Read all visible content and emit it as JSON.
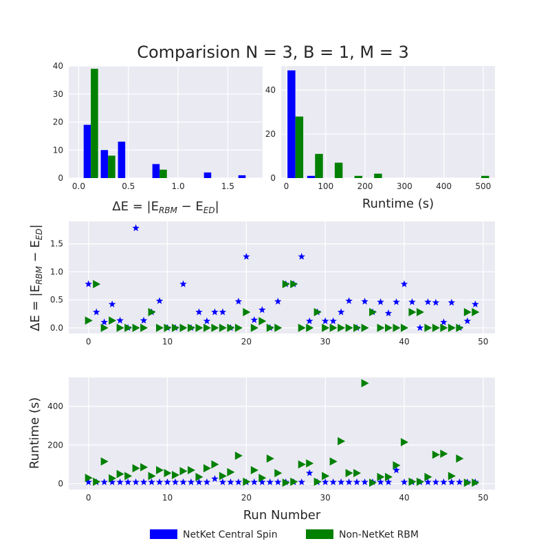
{
  "figure": {
    "title": "Comparision N = 3, B = 1, M = 3",
    "legend": [
      {
        "label": "NetKet Central Spin",
        "color": "#0000ff"
      },
      {
        "label": "Non-NetKet RBM",
        "color": "#008000"
      }
    ]
  },
  "chart_data": [
    {
      "type": "bar",
      "subtype": "histogram",
      "xlabel": "ΔE = |E_RBM − E_ED|",
      "ylabel": "",
      "xlim": [
        -0.1,
        1.85
      ],
      "ylim": [
        0,
        40
      ],
      "xticks": [
        0.0,
        0.5,
        1.0,
        1.5
      ],
      "xtick_labels": [
        "0.0",
        "0.5",
        "1.0",
        "1.5"
      ],
      "yticks": [
        0,
        10,
        20,
        30,
        40
      ],
      "grid": true,
      "series": [
        {
          "name": "NetKet Central Spin",
          "color": "#0000ff",
          "bins": [
            [
              0.05,
              0.122
            ],
            [
              0.222,
              0.295
            ],
            [
              0.395,
              0.468
            ],
            [
              0.568,
              0.641
            ],
            [
              0.741,
              0.814
            ],
            [
              0.914,
              0.987
            ],
            [
              1.087,
              1.16
            ],
            [
              1.26,
              1.333
            ],
            [
              1.433,
              1.506
            ],
            [
              1.606,
              1.679
            ]
          ],
          "values": [
            19,
            10,
            13,
            0,
            5,
            0,
            0,
            2,
            0,
            1
          ]
        },
        {
          "name": "Non-NetKet RBM",
          "color": "#008000",
          "bins": [
            [
              0.122,
              0.195
            ],
            [
              0.295,
              0.368
            ],
            [
              0.468,
              0.541
            ],
            [
              0.641,
              0.714
            ],
            [
              0.814,
              0.887
            ]
          ],
          "values": [
            39,
            8,
            0,
            0,
            3
          ]
        }
      ]
    },
    {
      "type": "bar",
      "subtype": "histogram",
      "xlabel": "Runtime (s)",
      "ylabel": "",
      "xlim": [
        -13,
        530
      ],
      "ylim": [
        0,
        51
      ],
      "xticks": [
        0,
        100,
        200,
        300,
        400,
        500
      ],
      "yticks": [
        0,
        20,
        40
      ],
      "grid": true,
      "series": [
        {
          "name": "NetKet Central Spin",
          "color": "#0000ff",
          "bins": [
            [
              3,
              23
            ],
            [
              53,
              73
            ]
          ],
          "values": [
            49,
            1
          ]
        },
        {
          "name": "Non-NetKet RBM",
          "color": "#008000",
          "bins": [
            [
              23,
              43
            ],
            [
              73,
              93
            ],
            [
              123,
              143
            ],
            [
              173,
              193
            ],
            [
              223,
              243
            ],
            [
              273,
              293
            ],
            [
              323,
              343
            ],
            [
              373,
              393
            ],
            [
              423,
              443
            ],
            [
              473,
              493
            ],
            [
              495,
              515
            ]
          ],
          "values": [
            28,
            11,
            7,
            1,
            2,
            0,
            0,
            0,
            0,
            0,
            1
          ]
        }
      ]
    },
    {
      "type": "scatter",
      "xlabel": "",
      "ylabel": "ΔE = |E_RBM − E_ED|",
      "xlim": [
        -2.5,
        51.5
      ],
      "ylim": [
        -0.1,
        1.9
      ],
      "xticks": [
        0,
        10,
        20,
        30,
        40,
        50
      ],
      "yticks": [
        0.0,
        0.5,
        1.0,
        1.5
      ],
      "ytick_labels": [
        "0.0",
        "0.5",
        "1.0",
        "1.5"
      ],
      "grid": true,
      "x": [
        0,
        1,
        2,
        3,
        4,
        5,
        6,
        7,
        8,
        9,
        10,
        11,
        12,
        13,
        14,
        15,
        16,
        17,
        18,
        19,
        20,
        21,
        22,
        23,
        24,
        25,
        26,
        27,
        28,
        29,
        30,
        31,
        32,
        33,
        34,
        35,
        36,
        37,
        38,
        39,
        40,
        41,
        42,
        43,
        44,
        45,
        46,
        47,
        48,
        49
      ],
      "series": [
        {
          "name": "NetKet Central Spin",
          "color": "#0000ff",
          "marker": "star",
          "values": [
            0.78,
            0.28,
            0.1,
            0.42,
            0.13,
            0.0,
            1.78,
            0.13,
            0.28,
            0.48,
            0.0,
            0.0,
            0.78,
            0.0,
            0.28,
            0.12,
            0.28,
            0.28,
            0.0,
            0.47,
            1.27,
            0.14,
            0.32,
            0.0,
            0.47,
            0.78,
            0.78,
            1.27,
            0.12,
            0.28,
            0.12,
            0.12,
            0.28,
            0.48,
            0.0,
            0.47,
            0.28,
            0.46,
            0.26,
            0.46,
            0.78,
            0.46,
            0.0,
            0.46,
            0.45,
            0.1,
            0.45,
            0.0,
            0.12,
            0.42
          ]
        },
        {
          "name": "Non-NetKet RBM",
          "color": "#008000",
          "marker": "triangle-right",
          "values": [
            0.13,
            0.78,
            0.0,
            0.13,
            0.0,
            0.0,
            0.0,
            0.0,
            0.28,
            0.0,
            0.0,
            0.0,
            0.0,
            0.0,
            0.0,
            0.0,
            0.0,
            0.0,
            0.0,
            0.0,
            0.28,
            0.0,
            0.12,
            0.0,
            0.0,
            0.78,
            0.78,
            0.0,
            0.0,
            0.28,
            0.0,
            0.0,
            0.0,
            0.0,
            0.0,
            0.0,
            0.28,
            0.0,
            0.0,
            0.0,
            0.0,
            0.28,
            0.28,
            0.0,
            0.0,
            0.0,
            0.0,
            0.0,
            0.28,
            0.28
          ]
        }
      ]
    },
    {
      "type": "scatter",
      "xlabel": "Run Number",
      "ylabel": "Runtime (s)",
      "xlim": [
        -2.5,
        51.5
      ],
      "ylim": [
        -30,
        550
      ],
      "xticks": [
        0,
        10,
        20,
        30,
        40,
        50
      ],
      "yticks": [
        0,
        200,
        400
      ],
      "grid": true,
      "x": [
        0,
        1,
        2,
        3,
        4,
        5,
        6,
        7,
        8,
        9,
        10,
        11,
        12,
        13,
        14,
        15,
        16,
        17,
        18,
        19,
        20,
        21,
        22,
        23,
        24,
        25,
        26,
        27,
        28,
        29,
        30,
        31,
        32,
        33,
        34,
        35,
        36,
        37,
        38,
        39,
        40,
        41,
        42,
        43,
        44,
        45,
        46,
        47,
        48,
        49
      ],
      "series": [
        {
          "name": "NetKet Central Spin",
          "color": "#0000ff",
          "marker": "star",
          "values": [
            8,
            8,
            8,
            8,
            8,
            8,
            8,
            8,
            8,
            8,
            8,
            8,
            8,
            8,
            8,
            8,
            25,
            8,
            8,
            8,
            8,
            8,
            8,
            8,
            8,
            8,
            8,
            8,
            55,
            8,
            8,
            8,
            8,
            8,
            8,
            8,
            8,
            8,
            8,
            70,
            8,
            8,
            8,
            8,
            8,
            8,
            8,
            8,
            8,
            8
          ]
        },
        {
          "name": "Non-NetKet RBM",
          "color": "#008000",
          "marker": "triangle-right",
          "values": [
            30,
            10,
            115,
            28,
            50,
            40,
            80,
            85,
            40,
            70,
            55,
            45,
            65,
            70,
            35,
            80,
            100,
            40,
            60,
            145,
            10,
            70,
            30,
            130,
            55,
            5,
            10,
            100,
            105,
            10,
            40,
            115,
            220,
            55,
            55,
            520,
            5,
            35,
            35,
            95,
            215,
            10,
            10,
            35,
            150,
            155,
            40,
            130,
            5,
            5
          ]
        }
      ]
    }
  ]
}
